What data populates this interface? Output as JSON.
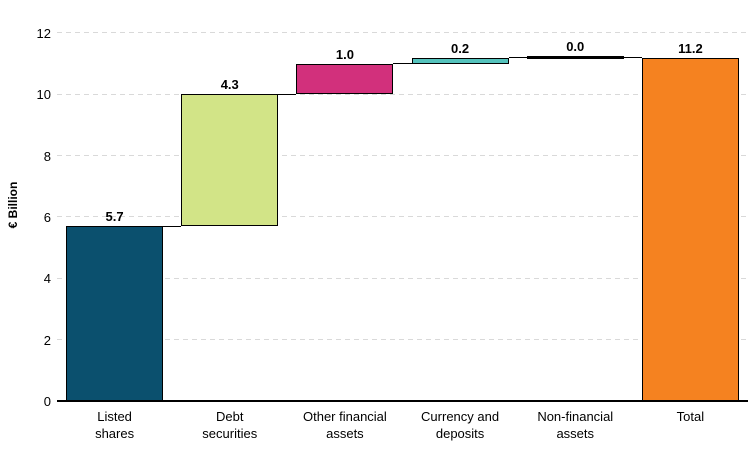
{
  "chart_data": {
    "type": "bar",
    "subtype": "waterfall",
    "title": "",
    "xlabel": "",
    "ylabel": "€ Billion",
    "ylim": [
      0,
      12.4
    ],
    "yticks": [
      0,
      2,
      4,
      6,
      8,
      10,
      12
    ],
    "grid": "horizontal-dashed",
    "legend": "none",
    "categories": [
      "Listed shares",
      "Debt securities",
      "Other financial assets",
      "Currency and deposits",
      "Non-financial assets",
      "Total"
    ],
    "values": [
      5.7,
      4.3,
      1.0,
      0.2,
      0.0,
      11.2
    ],
    "bars": [
      {
        "name": "listed-shares",
        "label_lines": "Listed\nshares",
        "value": 5.7,
        "value_label": "5.7",
        "start": 0,
        "end": 5.7,
        "color": "#0b506e",
        "kind": "delta"
      },
      {
        "name": "debt-securities",
        "label_lines": "Debt\nsecurities",
        "value": 4.3,
        "value_label": "4.3",
        "start": 5.7,
        "end": 10.0,
        "color": "#d2e487",
        "kind": "delta"
      },
      {
        "name": "other-financial-assets",
        "label_lines": "Other financial\nassets",
        "value": 1.0,
        "value_label": "1.0",
        "start": 10.0,
        "end": 11.0,
        "color": "#d2307c",
        "kind": "delta"
      },
      {
        "name": "currency-and-deposits",
        "label_lines": "Currency and\ndeposits",
        "value": 0.2,
        "value_label": "0.2",
        "start": 11.0,
        "end": 11.2,
        "color": "#55c3bd",
        "kind": "delta"
      },
      {
        "name": "non-financial-assets",
        "label_lines": "Non-financial\nassets",
        "value": 0.0,
        "value_label": "0.0",
        "start": 11.2,
        "end": 11.2,
        "color": "#000000",
        "kind": "zero"
      },
      {
        "name": "total",
        "label_lines": "Total",
        "value": 11.2,
        "value_label": "11.2",
        "start": 0,
        "end": 11.2,
        "color": "#f58220",
        "kind": "total"
      }
    ],
    "style": {
      "gridline_color": "#d9d9d9",
      "axis_color": "#000000",
      "text_color": "#000000",
      "background": "#ffffff",
      "bar_outline": "#000000"
    }
  }
}
